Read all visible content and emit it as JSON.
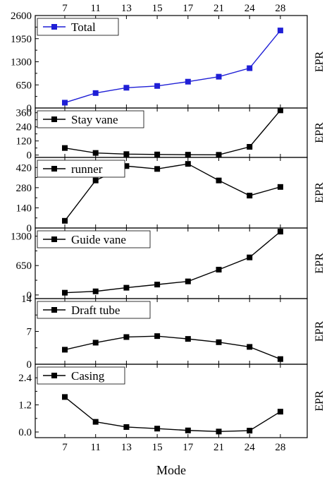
{
  "chart_data": {
    "type": "line",
    "x_categories": [
      "7",
      "11",
      "13",
      "15",
      "17",
      "21",
      "24",
      "28"
    ],
    "top_axis_labels": [
      "7",
      "11",
      "13",
      "15",
      "17",
      "21",
      "24",
      "28"
    ],
    "xlabel": "Mode",
    "panels": [
      {
        "name": "Total",
        "ylabel": "EPR",
        "color": "#1f1fd6",
        "ylim": [
          0,
          2600
        ],
        "yticks": [
          "0",
          "650",
          "1300",
          "1950",
          "2600"
        ],
        "ytick_values": [
          0,
          650,
          1300,
          1950,
          2600
        ],
        "values": [
          150,
          420,
          570,
          620,
          740,
          880,
          1120,
          2180
        ]
      },
      {
        "name": "Stay vane",
        "ylabel": "EPR",
        "color": "#000000",
        "ylim": [
          -20,
          400
        ],
        "yticks": [
          "0",
          "120",
          "240",
          "360"
        ],
        "ytick_values": [
          0,
          120,
          240,
          360
        ],
        "values": [
          60,
          18,
          8,
          5,
          3,
          2,
          70,
          380
        ]
      },
      {
        "name": "runner",
        "ylabel": "EPR",
        "color": "#000000",
        "ylim": [
          0,
          490
        ],
        "yticks": [
          "0",
          "140",
          "280",
          "420"
        ],
        "ytick_values": [
          0,
          140,
          280,
          420
        ],
        "values": [
          50,
          330,
          430,
          410,
          445,
          330,
          225,
          285
        ]
      },
      {
        "name": "Guide vane",
        "ylabel": "EPR",
        "color": "#000000",
        "ylim": [
          -80,
          1480
        ],
        "yticks": [
          "0",
          "650",
          "1300"
        ],
        "ytick_values": [
          0,
          650,
          1300
        ],
        "values": [
          50,
          80,
          160,
          230,
          300,
          560,
          830,
          1400
        ]
      },
      {
        "name": "Draft tube",
        "ylabel": "EPR",
        "color": "#000000",
        "ylim": [
          0,
          14
        ],
        "yticks": [
          "0",
          "7",
          "14"
        ],
        "ytick_values": [
          0,
          7,
          14
        ],
        "values": [
          3.1,
          4.6,
          5.8,
          6.0,
          5.4,
          4.7,
          3.7,
          1.1
        ]
      },
      {
        "name": "Casing",
        "ylabel": "EPR",
        "color": "#000000",
        "ylim": [
          -0.25,
          3.0
        ],
        "yticks": [
          "0.0",
          "1.2",
          "2.4"
        ],
        "ytick_values": [
          0,
          1.2,
          2.4
        ],
        "values": [
          1.55,
          0.45,
          0.22,
          0.15,
          0.07,
          0.02,
          0.06,
          0.9
        ]
      }
    ]
  }
}
